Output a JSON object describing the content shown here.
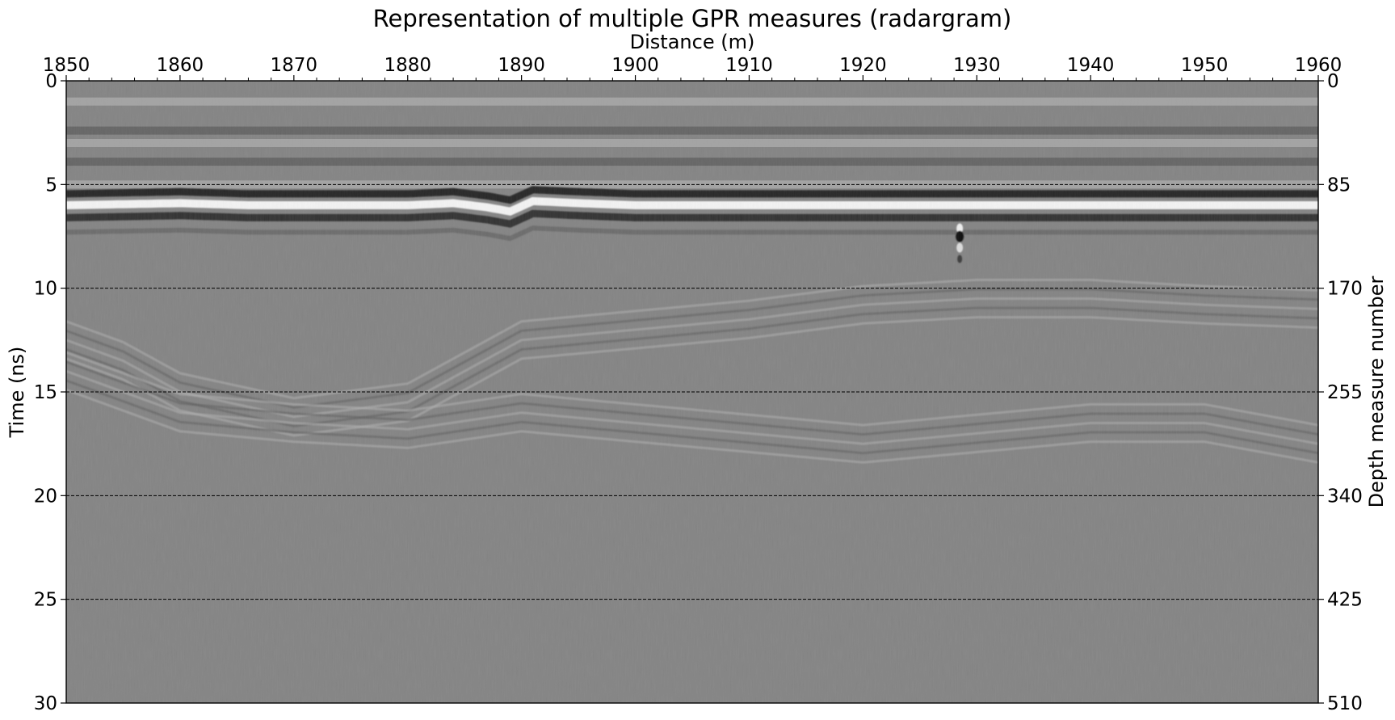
{
  "chart_data": {
    "type": "heatmap",
    "title": "Representation of multiple GPR measures (radargram)",
    "xlabel": "Distance (m)",
    "ylabel": "Time (ns)",
    "ylabel_right": "Depth measure number",
    "xlim": [
      1850,
      1960
    ],
    "ylim": [
      0,
      30
    ],
    "ylim_right": [
      0,
      510
    ],
    "x_ticks": [
      "1850",
      "1860",
      "1870",
      "1880",
      "1890",
      "1900",
      "1910",
      "1920",
      "1930",
      "1940",
      "1950",
      "1960"
    ],
    "y_ticks": [
      "0",
      "5",
      "10",
      "15",
      "20",
      "25",
      "30"
    ],
    "y_ticks_right": [
      "0",
      "85",
      "170",
      "255",
      "340",
      "425",
      "510"
    ],
    "x_minor_step": 2,
    "y_gridlines": [
      5,
      10,
      15,
      20,
      25,
      30
    ],
    "grid": "horizontal dashed at major time ticks",
    "colormap": "grayscale",
    "reflectors": {
      "surface_bands_ns": [
        1.0,
        2.4,
        3.0,
        3.9,
        5.0
      ],
      "main_reflector": {
        "x": [
          1850,
          1860,
          1866,
          1880,
          1884,
          1887,
          1889,
          1891,
          1895,
          1900,
          1910,
          1930,
          1960
        ],
        "y": [
          6.0,
          5.9,
          6.0,
          6.0,
          5.9,
          6.1,
          6.3,
          5.8,
          5.9,
          6.0,
          6.0,
          6.0,
          6.0
        ]
      },
      "secondary_reflector": {
        "x": [
          1850,
          1855,
          1860,
          1870,
          1880,
          1890,
          1900,
          1910,
          1920,
          1930,
          1940,
          1950,
          1960
        ],
        "y": [
          12.5,
          13.5,
          15.0,
          16.2,
          15.5,
          12.5,
          12.0,
          11.5,
          10.8,
          10.5,
          10.5,
          10.8,
          11.0
        ]
      },
      "deep_reflector": {
        "x": [
          1850,
          1860,
          1870,
          1880,
          1890,
          1900,
          1910,
          1920,
          1930,
          1940,
          1950,
          1960
        ],
        "y": [
          14.0,
          16.0,
          16.5,
          16.8,
          16.0,
          16.5,
          17.0,
          17.5,
          17.0,
          16.5,
          16.5,
          17.5
        ]
      },
      "point_anomaly": {
        "x": 1928.5,
        "y": 7.5
      }
    }
  }
}
